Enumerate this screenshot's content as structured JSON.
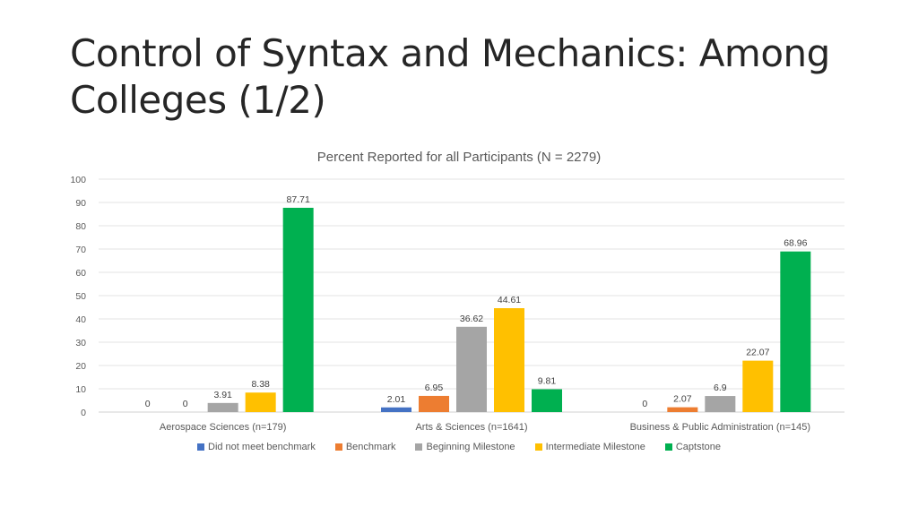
{
  "slide": {
    "title": "Control of Syntax and Mechanics: Among Colleges (1/2)"
  },
  "chart_data": {
    "type": "bar",
    "title": "Percent Reported for all Participants (N = 2279)",
    "categories": [
      "Aerospace Sciences (n=179)",
      "Arts & Sciences (n=1641)",
      "Business & Public Administration (n=145)"
    ],
    "series": [
      {
        "name": "Did not meet benchmark",
        "color": "#4472C4",
        "values": [
          0,
          2.01,
          0
        ],
        "labels": [
          "0",
          "2.01",
          "0"
        ]
      },
      {
        "name": "Benchmark",
        "color": "#ED7D31",
        "values": [
          0,
          6.95,
          2.07
        ],
        "labels": [
          "0",
          "6.95",
          "2.07"
        ]
      },
      {
        "name": "Beginning Milestone",
        "color": "#A5A5A5",
        "values": [
          3.91,
          36.62,
          6.9
        ],
        "labels": [
          "3.91",
          "36.62",
          "6.9"
        ]
      },
      {
        "name": "Intermediate Milestone",
        "color": "#FFC000",
        "values": [
          8.38,
          44.61,
          22.07
        ],
        "labels": [
          "8.38",
          "44.61",
          "22.07"
        ]
      },
      {
        "name": "Captstone",
        "color": "#00B050",
        "values": [
          87.71,
          9.81,
          68.96
        ],
        "labels": [
          "87.71",
          "9.81",
          "68.96"
        ]
      }
    ],
    "ylim": [
      0,
      100
    ],
    "yticks": [
      0,
      10,
      20,
      30,
      40,
      50,
      60,
      70,
      80,
      90,
      100
    ],
    "grid": true,
    "legend_position": "bottom",
    "xlabel": "",
    "ylabel": ""
  }
}
